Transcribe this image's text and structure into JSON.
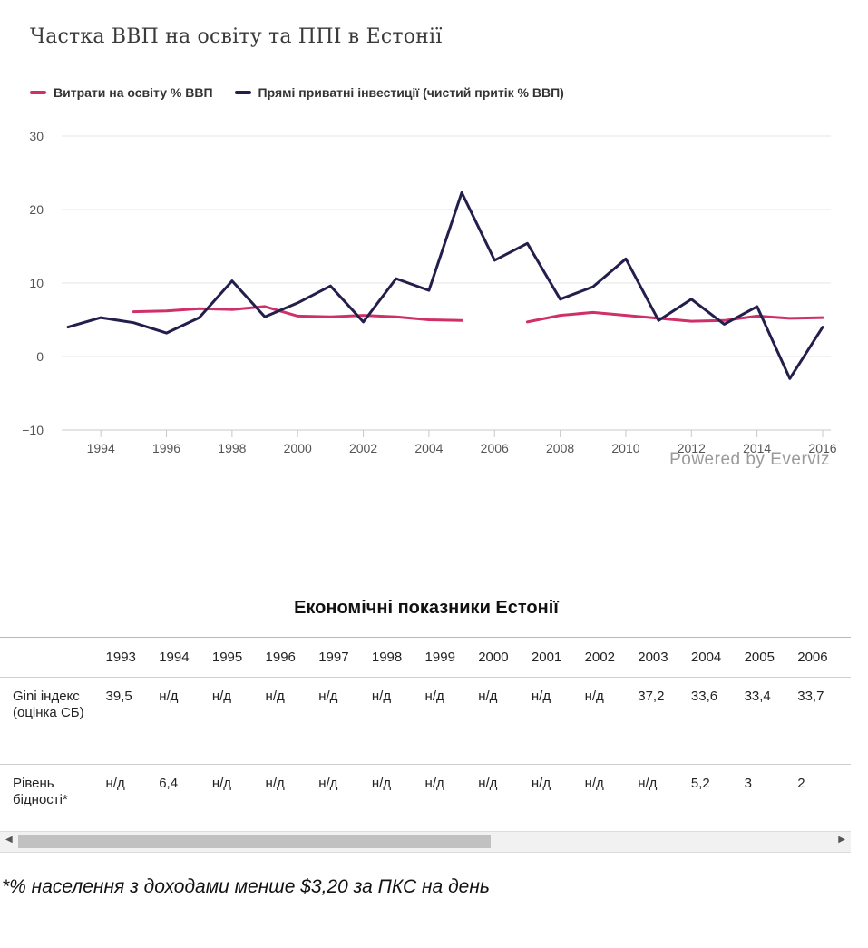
{
  "chart_data": {
    "type": "line",
    "title": "Частка ВВП на освіту та ППІ в Естонії",
    "legend_position": "top-left",
    "grid": true,
    "ylim": [
      -10,
      30
    ],
    "yticks": [
      "30",
      "20",
      "10",
      "0",
      "−10"
    ],
    "xlim": [
      1993,
      2016
    ],
    "xticks": [
      "1994",
      "1996",
      "1998",
      "2000",
      "2002",
      "2004",
      "2006",
      "2008",
      "2010",
      "2012",
      "2014",
      "2016"
    ],
    "series": [
      {
        "name": "Витрати на освіту % ВВП",
        "color": "#d0306a",
        "points": [
          [
            1995,
            6.1
          ],
          [
            1996,
            6.2
          ],
          [
            1997,
            6.5
          ],
          [
            1998,
            6.4
          ],
          [
            1999,
            6.8
          ],
          [
            2000,
            5.5
          ],
          [
            2001,
            5.4
          ],
          [
            2002,
            5.6
          ],
          [
            2003,
            5.4
          ],
          [
            2004,
            5.0
          ],
          [
            2005,
            4.9
          ],
          [
            2006,
            null
          ],
          [
            2007,
            4.7
          ],
          [
            2008,
            5.6
          ],
          [
            2009,
            6.0
          ],
          [
            2010,
            5.6
          ],
          [
            2011,
            5.2
          ],
          [
            2012,
            4.8
          ],
          [
            2013,
            4.9
          ],
          [
            2014,
            5.5
          ],
          [
            2015,
            5.2
          ],
          [
            2016,
            5.3
          ]
        ]
      },
      {
        "name": "Прямі приватні інвестиції (чистий притік % ВВП)",
        "color": "#231f4d",
        "points": [
          [
            1993,
            4.0
          ],
          [
            1994,
            5.3
          ],
          [
            1995,
            4.6
          ],
          [
            1996,
            3.2
          ],
          [
            1997,
            5.3
          ],
          [
            1998,
            10.3
          ],
          [
            1999,
            5.4
          ],
          [
            2000,
            7.3
          ],
          [
            2001,
            9.6
          ],
          [
            2002,
            4.7
          ],
          [
            2003,
            10.6
          ],
          [
            2004,
            9.0
          ],
          [
            2005,
            22.3
          ],
          [
            2006,
            13.1
          ],
          [
            2007,
            15.4
          ],
          [
            2008,
            7.8
          ],
          [
            2009,
            9.5
          ],
          [
            2010,
            13.3
          ],
          [
            2011,
            4.9
          ],
          [
            2012,
            7.8
          ],
          [
            2013,
            4.4
          ],
          [
            2014,
            6.8
          ],
          [
            2015,
            -3.0
          ],
          [
            2016,
            4.0
          ]
        ]
      }
    ]
  },
  "credit": "Powered by Everviz",
  "table": {
    "title": "Економічні показники Естонії",
    "years": [
      "1993",
      "1994",
      "1995",
      "1996",
      "1997",
      "1998",
      "1999",
      "2000",
      "2001",
      "2002",
      "2003",
      "2004",
      "2005",
      "2006"
    ],
    "rows": [
      {
        "label": "Gini індекс (оцінка СБ)",
        "values": [
          "39,5",
          "н/д",
          "н/д",
          "н/д",
          "н/д",
          "н/д",
          "н/д",
          "н/д",
          "н/д",
          "н/д",
          "37,2",
          "33,6",
          "33,4",
          "33,7"
        ]
      },
      {
        "label": "Рівень бідності*",
        "values": [
          "н/д",
          "6,4",
          "н/д",
          "н/д",
          "н/д",
          "н/д",
          "н/д",
          "н/д",
          "н/д",
          "н/д",
          "н/д",
          "5,2",
          "3",
          "2"
        ]
      }
    ]
  },
  "footnote": "*% населення з доходами менше $3,20 за ПКС на день"
}
